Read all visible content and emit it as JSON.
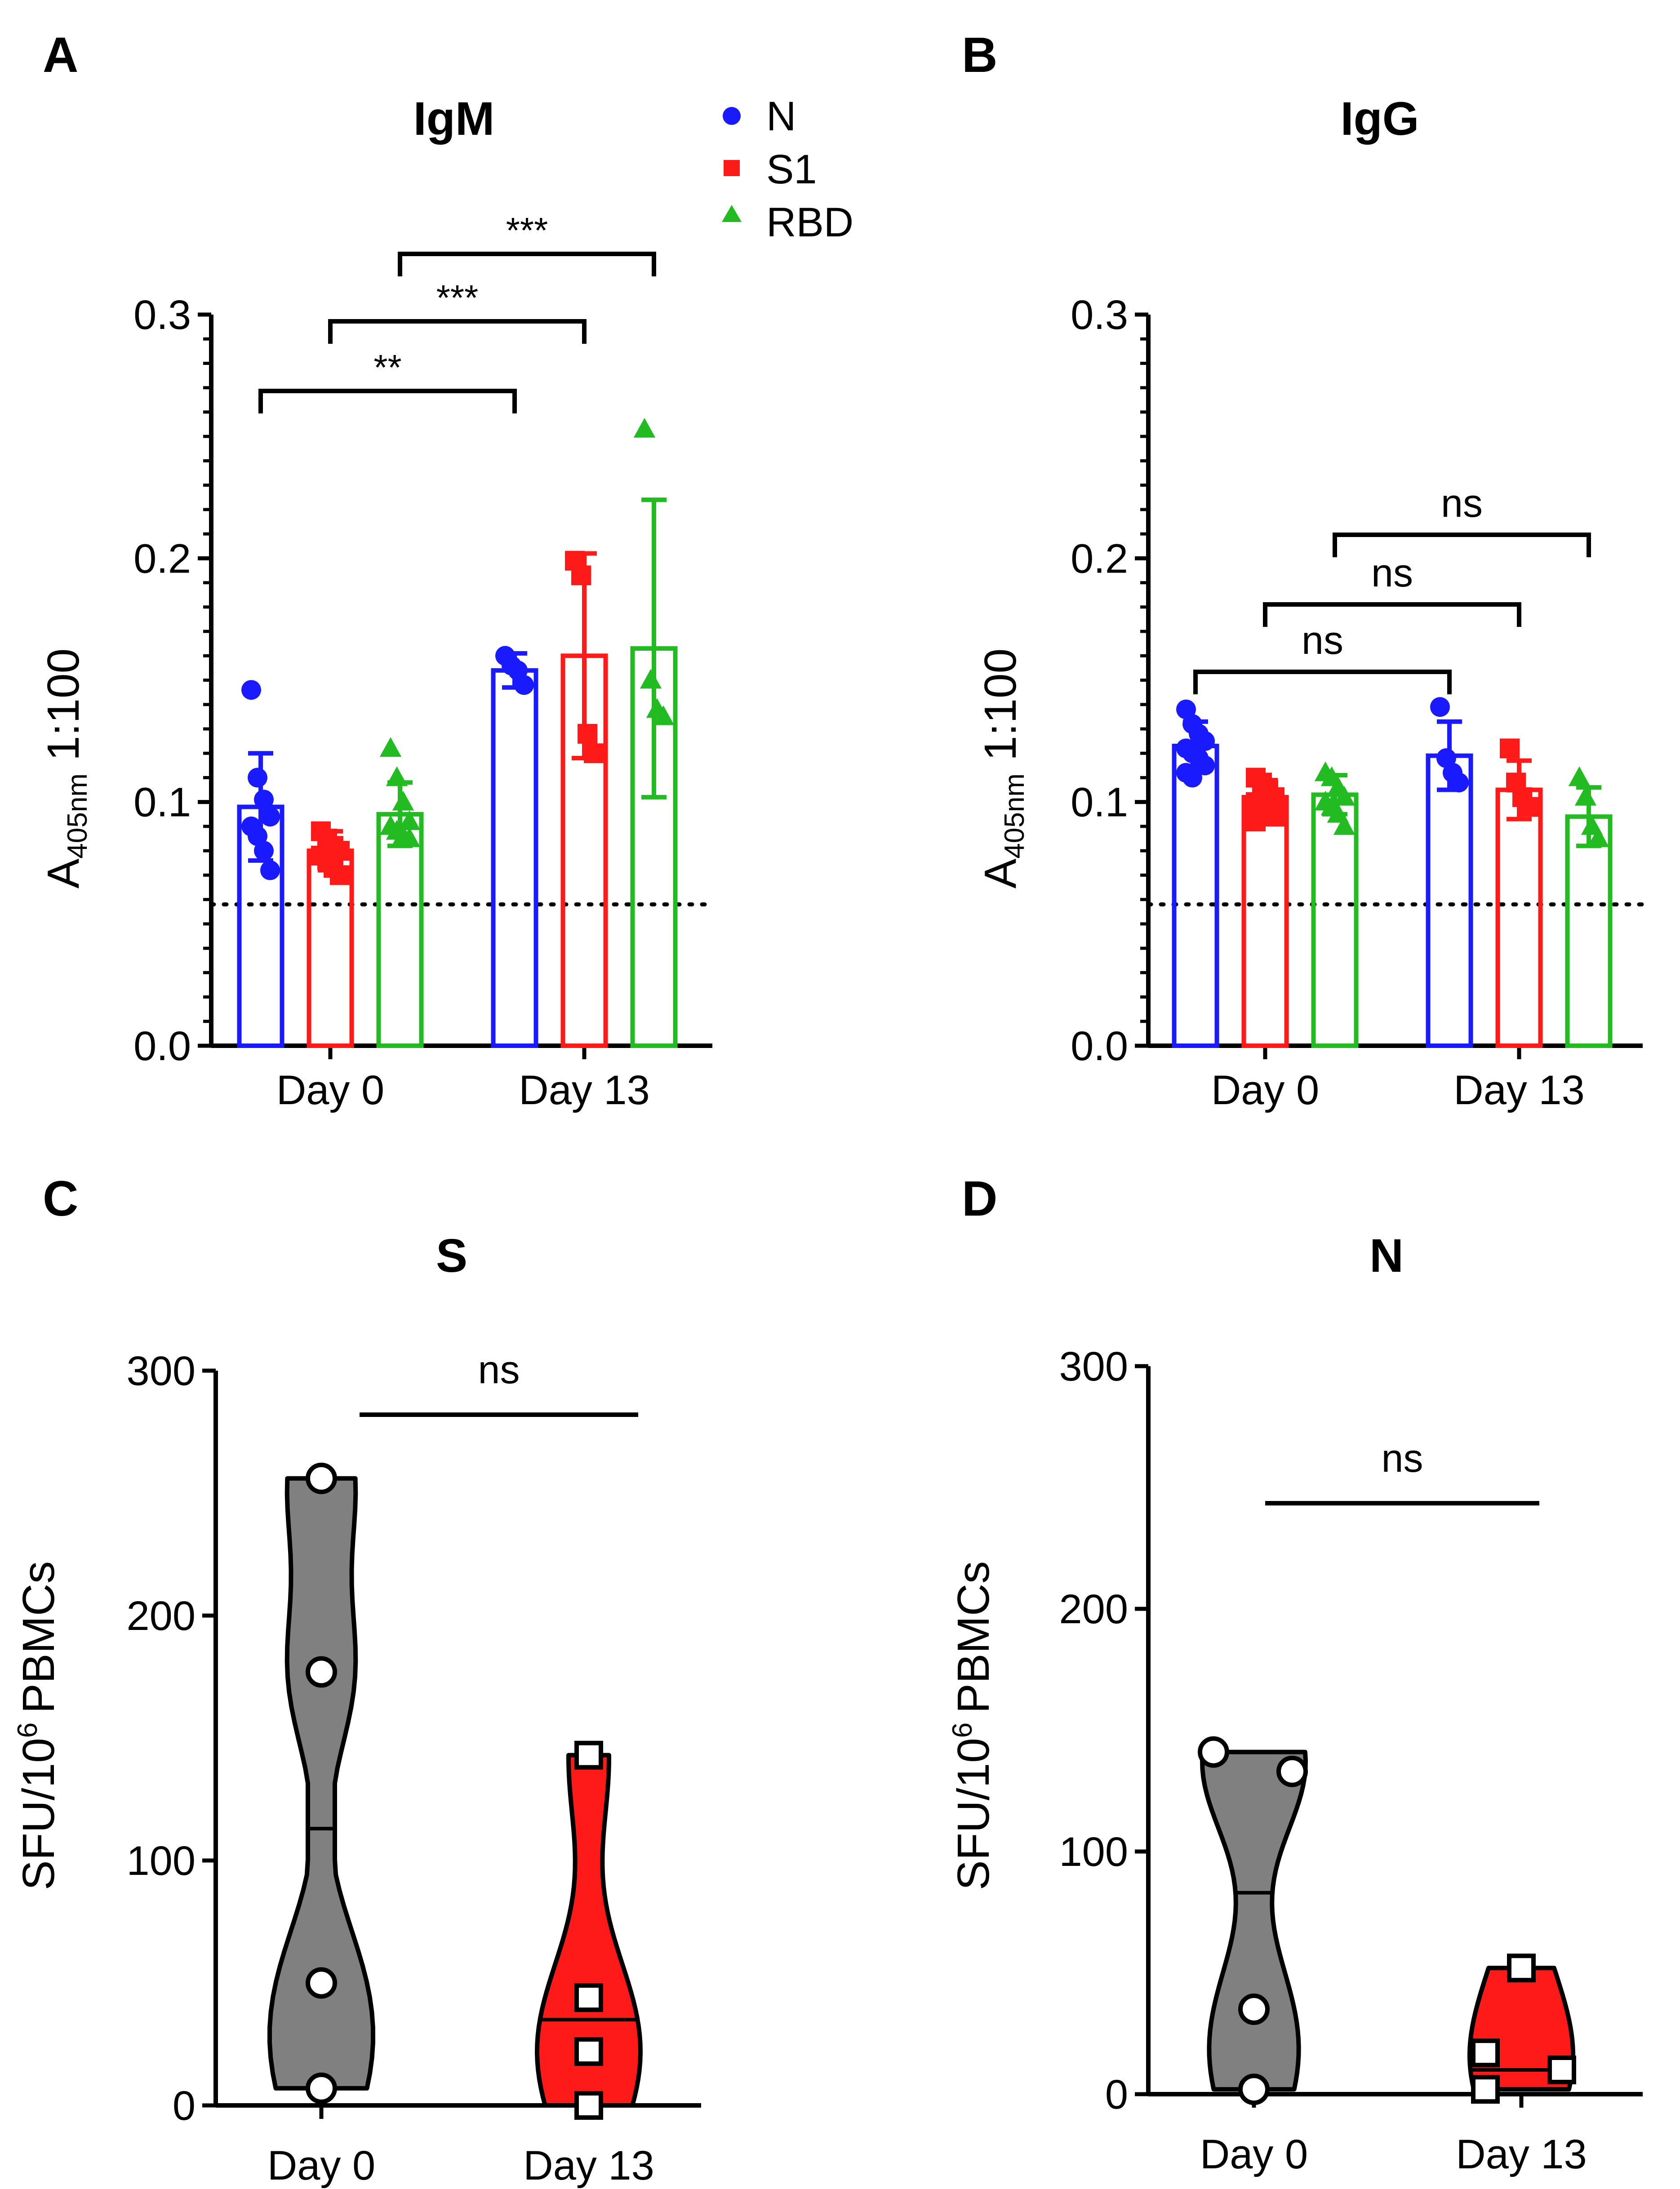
{
  "panels": {
    "A": {
      "letter": "A",
      "title": "IgM"
    },
    "B": {
      "letter": "B",
      "title": "IgG"
    },
    "C": {
      "letter": "C",
      "title": "S"
    },
    "D": {
      "letter": "D",
      "title": "N"
    }
  },
  "legend": {
    "items": [
      {
        "label": "N",
        "color": "#1a1aff",
        "marker": "circle"
      },
      {
        "label": "S1",
        "color": "#ff1a1a",
        "marker": "square"
      },
      {
        "label": "RBD",
        "color": "#22bb22",
        "marker": "triangle"
      }
    ]
  },
  "labels": {
    "ylabel_elisa_main": "A",
    "ylabel_elisa_sub": "405nm",
    "ylabel_elisa_suffix": "1:100",
    "ylabel_elispot_main": "SFU/10",
    "ylabel_elispot_sup": "6",
    "ylabel_elispot_suffix": "PBMCs"
  },
  "chart_data": [
    {
      "panel": "A",
      "type": "bar",
      "title": "IgM",
      "ylabel": "A405nm 1:100",
      "xlabel": "",
      "ylim": [
        0,
        0.3
      ],
      "yticks": [
        "0.0",
        "0.1",
        "0.2",
        "0.3"
      ],
      "cutoff": 0.058,
      "categories": [
        "Day 0",
        "Day 13"
      ],
      "series": [
        {
          "name": "N",
          "color": "#1a1aff",
          "marker": "circle",
          "means": [
            0.098,
            0.154
          ],
          "sd": [
            0.022,
            0.007
          ],
          "points": [
            [
              0.146,
              0.11,
              0.101,
              0.094,
              0.09,
              0.086,
              0.08,
              0.072
            ],
            [
              0.16,
              0.156,
              0.154,
              0.148
            ]
          ]
        },
        {
          "name": "S1",
          "color": "#ff1a1a",
          "marker": "square",
          "means": [
            0.08,
            0.16
          ],
          "sd": [
            0.008,
            0.042
          ],
          "points": [
            [
              0.088,
              0.085,
              0.082,
              0.08,
              0.078,
              0.076,
              0.073,
              0.07
            ],
            [
              0.199,
              0.193,
              0.128,
              0.12
            ]
          ]
        },
        {
          "name": "RBD",
          "color": "#22bb22",
          "marker": "triangle",
          "means": [
            0.095,
            0.163
          ],
          "sd": [
            0.013,
            0.061
          ],
          "points": [
            [
              0.122,
              0.11,
              0.1,
              0.092,
              0.09,
              0.088,
              0.086,
              0.085
            ],
            [
              0.253,
              0.15,
              0.138,
              0.135
            ]
          ]
        }
      ],
      "comparisons": [
        {
          "series": "N",
          "label": "**"
        },
        {
          "series": "S1",
          "label": "***"
        },
        {
          "series": "RBD",
          "label": "***"
        }
      ]
    },
    {
      "panel": "B",
      "type": "bar",
      "title": "IgG",
      "ylabel": "A405nm 1:100",
      "xlabel": "",
      "ylim": [
        0,
        0.3
      ],
      "yticks": [
        "0.0",
        "0.1",
        "0.2",
        "0.3"
      ],
      "cutoff": 0.058,
      "categories": [
        "Day 0",
        "Day 13"
      ],
      "series": [
        {
          "name": "N",
          "color": "#1a1aff",
          "marker": "circle",
          "means": [
            0.123,
            0.119
          ],
          "sd": [
            0.01,
            0.014
          ],
          "points": [
            [
              0.138,
              0.132,
              0.128,
              0.125,
              0.122,
              0.12,
              0.118,
              0.115,
              0.112,
              0.11
            ],
            [
              0.139,
              0.118,
              0.112,
              0.108
            ]
          ]
        },
        {
          "name": "S1",
          "color": "#ff1a1a",
          "marker": "square",
          "means": [
            0.102,
            0.105
          ],
          "sd": [
            0.007,
            0.012
          ],
          "points": [
            [
              0.11,
              0.108,
              0.105,
              0.102,
              0.1,
              0.098,
              0.096,
              0.094,
              0.092
            ],
            [
              0.122,
              0.108,
              0.102,
              0.098
            ]
          ]
        },
        {
          "name": "RBD",
          "color": "#22bb22",
          "marker": "triangle",
          "means": [
            0.103,
            0.094
          ],
          "sd": [
            0.008,
            0.012
          ],
          "points": [
            [
              0.112,
              0.11,
              0.106,
              0.102,
              0.1,
              0.098,
              0.095,
              0.09
            ],
            [
              0.11,
              0.102,
              0.09,
              0.085
            ]
          ]
        }
      ],
      "comparisons": [
        {
          "series": "N",
          "label": "ns"
        },
        {
          "series": "S1",
          "label": "ns"
        },
        {
          "series": "RBD",
          "label": "ns"
        }
      ]
    },
    {
      "panel": "C",
      "type": "violin",
      "title": "S",
      "ylabel": "SFU/10^6 PBMCs",
      "xlabel": "",
      "ylim": [
        0,
        300
      ],
      "yticks": [
        "0",
        "100",
        "200",
        "300"
      ],
      "categories": [
        "Day 0",
        "Day 13"
      ],
      "groups": [
        {
          "name": "Day 0",
          "fill": "#808080",
          "marker": "circle",
          "median": 113,
          "points": [
            256,
            177,
            50,
            7
          ]
        },
        {
          "name": "Day 13",
          "fill": "#ff1a1a",
          "marker": "square",
          "median": 35,
          "points": [
            143,
            44,
            22,
            0
          ]
        }
      ],
      "comparison": {
        "label": "ns"
      }
    },
    {
      "panel": "D",
      "type": "violin",
      "title": "N",
      "ylabel": "SFU/10^6 PBMCs",
      "xlabel": "",
      "ylim": [
        0,
        300
      ],
      "yticks": [
        "0",
        "100",
        "200",
        "300"
      ],
      "categories": [
        "Day 0",
        "Day 13"
      ],
      "groups": [
        {
          "name": "Day 0",
          "fill": "#808080",
          "marker": "circle",
          "median": 83,
          "points": [
            141,
            133,
            35,
            2
          ]
        },
        {
          "name": "Day 13",
          "fill": "#ff1a1a",
          "marker": "square",
          "median": 10,
          "points": [
            52,
            17,
            10,
            2
          ]
        }
      ],
      "comparison": {
        "label": "ns"
      }
    }
  ]
}
